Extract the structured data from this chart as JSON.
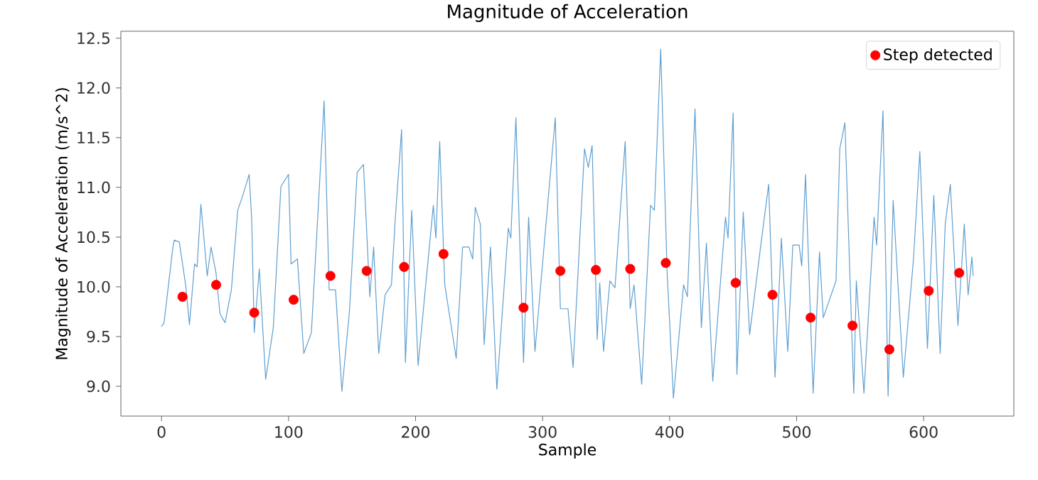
{
  "chart_data": {
    "type": "line",
    "title": "Magnitude of Acceleration",
    "xlabel": "Sample",
    "ylabel": "Magnitude of Acceleration (m/s^2)",
    "xlim": [
      -32,
      671
    ],
    "ylim": [
      8.7,
      12.57
    ],
    "xticks": [
      0,
      100,
      200,
      300,
      400,
      500,
      600
    ],
    "yticks": [
      {
        "value": 9,
        "label": "9.0"
      },
      {
        "value": 9.5,
        "label": "9.5"
      },
      {
        "value": 10,
        "label": "10.0"
      },
      {
        "value": 10.5,
        "label": "10.5"
      },
      {
        "value": 11,
        "label": "11.0"
      },
      {
        "value": 11.5,
        "label": "11.5"
      },
      {
        "value": 12,
        "label": "12.0"
      },
      {
        "value": 12.5,
        "label": "12.5"
      }
    ],
    "legend": "top right",
    "grid": false,
    "series": [
      {
        "color": "#5f9fd0",
        "line_style": "solid",
        "marker": "none",
        "x": [
          0,
          2,
          9,
          10,
          14,
          19,
          22,
          26,
          28,
          31,
          36,
          39,
          43,
          46,
          50,
          55,
          60,
          64,
          69,
          71,
          73,
          77,
          82,
          88,
          94,
          100,
          102,
          107,
          112,
          118,
          128,
          132,
          137,
          142,
          148,
          154,
          159,
          164,
          167,
          171,
          176,
          181,
          184,
          189,
          192,
          197,
          202,
          208,
          214,
          216,
          219,
          223,
          232,
          237,
          242,
          245,
          247,
          251,
          254,
          259,
          264,
          273,
          275,
          279,
          285,
          289,
          294,
          303,
          310,
          314,
          320,
          324,
          333,
          336,
          339,
          343,
          345,
          348,
          353,
          357,
          365,
          369,
          372,
          378,
          385,
          388,
          393,
          398,
          403,
          411,
          414,
          420,
          425,
          429,
          434,
          444,
          446,
          450,
          453,
          458,
          463,
          472,
          478,
          483,
          488,
          493,
          497,
          502,
          504,
          507,
          513,
          518,
          521,
          531,
          534,
          538,
          545,
          547,
          553,
          561,
          563,
          568,
          572,
          576,
          584,
          592,
          597,
          603,
          608,
          613,
          617,
          621,
          627,
          632,
          635,
          638,
          639
        ],
        "values": [
          9.6,
          9.64,
          10.4,
          10.47,
          10.45,
          10.02,
          9.62,
          10.23,
          10.2,
          10.83,
          10.11,
          10.4,
          10.13,
          9.73,
          9.64,
          9.97,
          10.77,
          10.92,
          11.13,
          10.68,
          9.54,
          10.18,
          9.07,
          9.59,
          11.01,
          11.13,
          10.23,
          10.28,
          9.33,
          9.54,
          11.87,
          9.97,
          9.97,
          8.95,
          9.76,
          11.15,
          11.23,
          9.9,
          10.4,
          9.33,
          9.92,
          10.02,
          10.68,
          11.58,
          9.24,
          10.77,
          9.21,
          10.02,
          10.82,
          10.49,
          11.46,
          10.02,
          9.28,
          10.4,
          10.4,
          10.28,
          10.8,
          10.63,
          9.42,
          10.4,
          8.97,
          10.59,
          10.49,
          11.7,
          9.24,
          10.7,
          9.35,
          10.68,
          11.7,
          9.78,
          9.78,
          9.19,
          11.39,
          11.2,
          11.42,
          9.47,
          10.04,
          9.35,
          10.06,
          9.99,
          11.46,
          9.78,
          10.02,
          9.02,
          10.82,
          10.77,
          12.39,
          10.16,
          8.88,
          10.02,
          9.9,
          11.79,
          9.59,
          10.44,
          9.05,
          10.7,
          10.49,
          11.75,
          9.12,
          10.75,
          9.52,
          10.44,
          11.03,
          9.09,
          10.49,
          9.35,
          10.42,
          10.42,
          10.21,
          11.13,
          8.93,
          10.35,
          9.69,
          10.06,
          11.39,
          11.65,
          8.93,
          10.06,
          8.93,
          10.7,
          10.42,
          11.77,
          8.9,
          10.87,
          9.09,
          10.28,
          11.36,
          9.38,
          10.92,
          9.33,
          10.63,
          11.03,
          9.61,
          10.63,
          9.92,
          10.3,
          10.11
        ]
      },
      {
        "type": "scatter",
        "name": "Step detected",
        "color": "#ff0000",
        "marker": "circle",
        "x": [
          16.5,
          43,
          73,
          104,
          133,
          161.5,
          191,
          222,
          285,
          314,
          342,
          369,
          397,
          452,
          481,
          511,
          544,
          573,
          604,
          628
        ],
        "values": [
          9.9,
          10.02,
          9.74,
          9.87,
          10.11,
          10.16,
          10.2,
          10.33,
          9.79,
          10.16,
          10.17,
          10.18,
          10.24,
          10.04,
          9.92,
          9.69,
          9.61,
          9.37,
          9.96,
          10.14
        ]
      }
    ]
  }
}
